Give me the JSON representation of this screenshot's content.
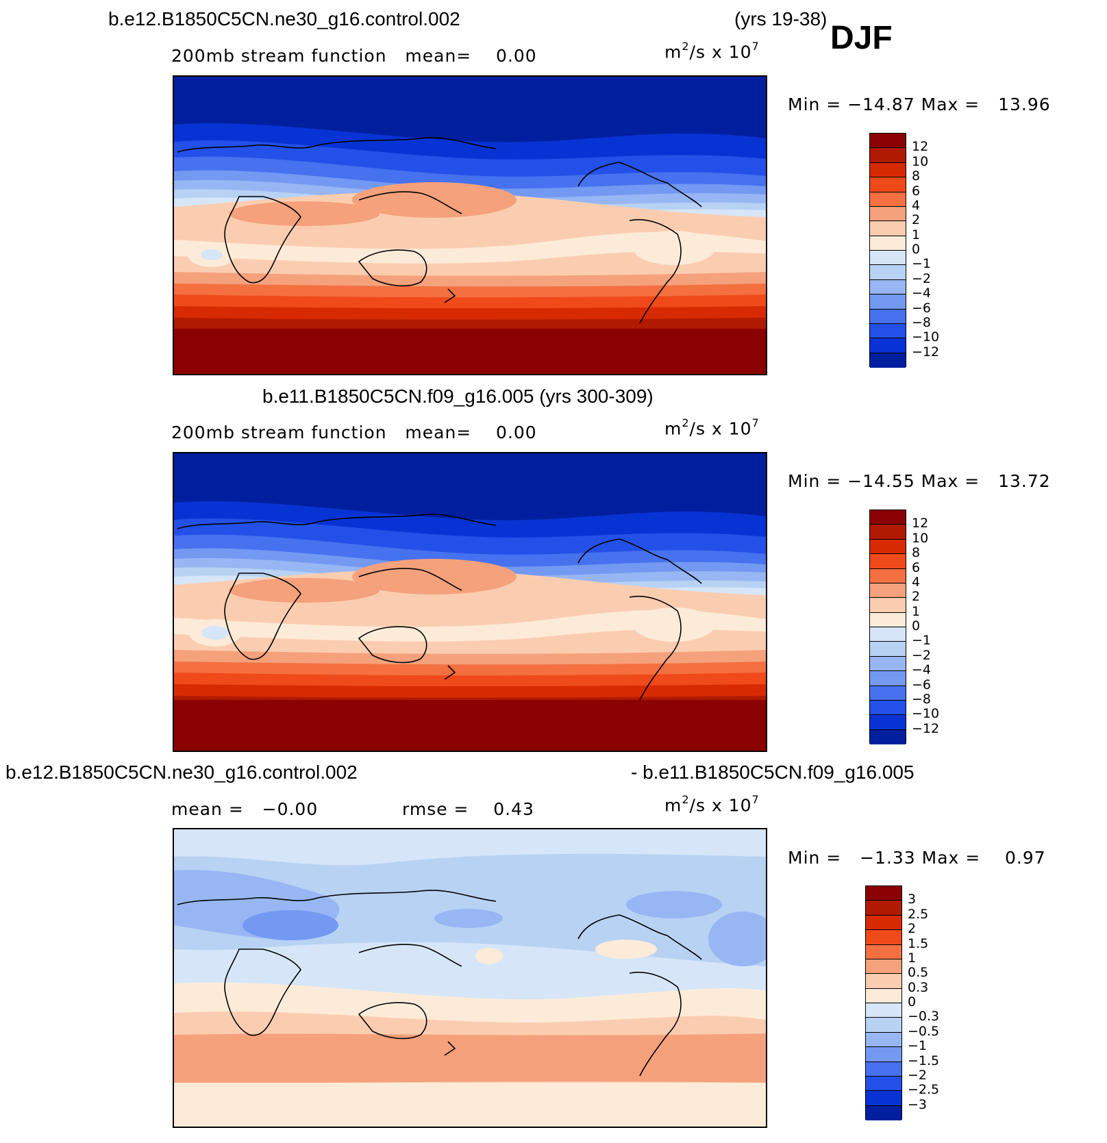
{
  "season": "DJF",
  "top_panel": {
    "case": "b.e12.B1850C5CN.ne30_g16.control.002",
    "years": "(yrs 19-38)",
    "left_label": "200mb stream function   mean=    0.00",
    "units_base": "m",
    "units_exp": "2",
    "units_mid": "/s x 10",
    "units_pow": "7",
    "minmax": "Min = −14.87 Max =   13.96",
    "colorbar": {
      "colors": [
        "#8b0000",
        "#b01a00",
        "#d82a00",
        "#f04a1a",
        "#f47040",
        "#f5a17c",
        "#fbcdb0",
        "#fdebd9",
        "#d6e6f8",
        "#b8d2f4",
        "#97b6f3",
        "#7399f2",
        "#4671ef",
        "#2350e8",
        "#0733d4",
        "#001f9e"
      ],
      "labels": [
        "12",
        "10",
        "8",
        "6",
        "4",
        "2",
        "1",
        "0",
        "−1",
        "−2",
        "−4",
        "−6",
        "−8",
        "−10",
        "−12"
      ]
    }
  },
  "middle_panel": {
    "title": "b.e11.B1850C5CN.f09_g16.005 (yrs 300-309)",
    "left_label": "200mb stream function   mean=    0.00",
    "minmax": "Min = −14.55 Max =   13.72",
    "colorbar": {
      "colors": [
        "#8b0000",
        "#b01a00",
        "#d82a00",
        "#f04a1a",
        "#f47040",
        "#f5a17c",
        "#fbcdb0",
        "#fdebd9",
        "#d6e6f8",
        "#b8d2f4",
        "#97b6f3",
        "#7399f2",
        "#4671ef",
        "#2350e8",
        "#0733d4",
        "#001f9e"
      ],
      "labels": [
        "12",
        "10",
        "8",
        "6",
        "4",
        "2",
        "1",
        "0",
        "−1",
        "−2",
        "−4",
        "−6",
        "−8",
        "−10",
        "−12"
      ]
    }
  },
  "bottom_panel": {
    "case_a": "b.e12.B1850C5CN.ne30_g16.control.002",
    "case_b": "- b.e11.B1850C5CN.f09_g16.005",
    "mean_label": "mean =   −0.00",
    "rmse_label": "rmse =    0.43",
    "minmax": "Min =   −1.33 Max =    0.97",
    "colorbar": {
      "colors": [
        "#8b0000",
        "#b01a00",
        "#d82a00",
        "#f04a1a",
        "#f47040",
        "#f5a17c",
        "#fbcdb0",
        "#fdebd9",
        "#d6e6f8",
        "#b8d2f4",
        "#97b6f3",
        "#7399f2",
        "#4671ef",
        "#2350e8",
        "#0733d4",
        "#001f9e"
      ],
      "labels": [
        "3",
        "2.5",
        "2",
        "1.5",
        "1",
        "0.5",
        "0.3",
        "0",
        "−0.3",
        "−0.5",
        "−1",
        "−1.5",
        "−2",
        "−2.5",
        "−3"
      ]
    }
  }
}
